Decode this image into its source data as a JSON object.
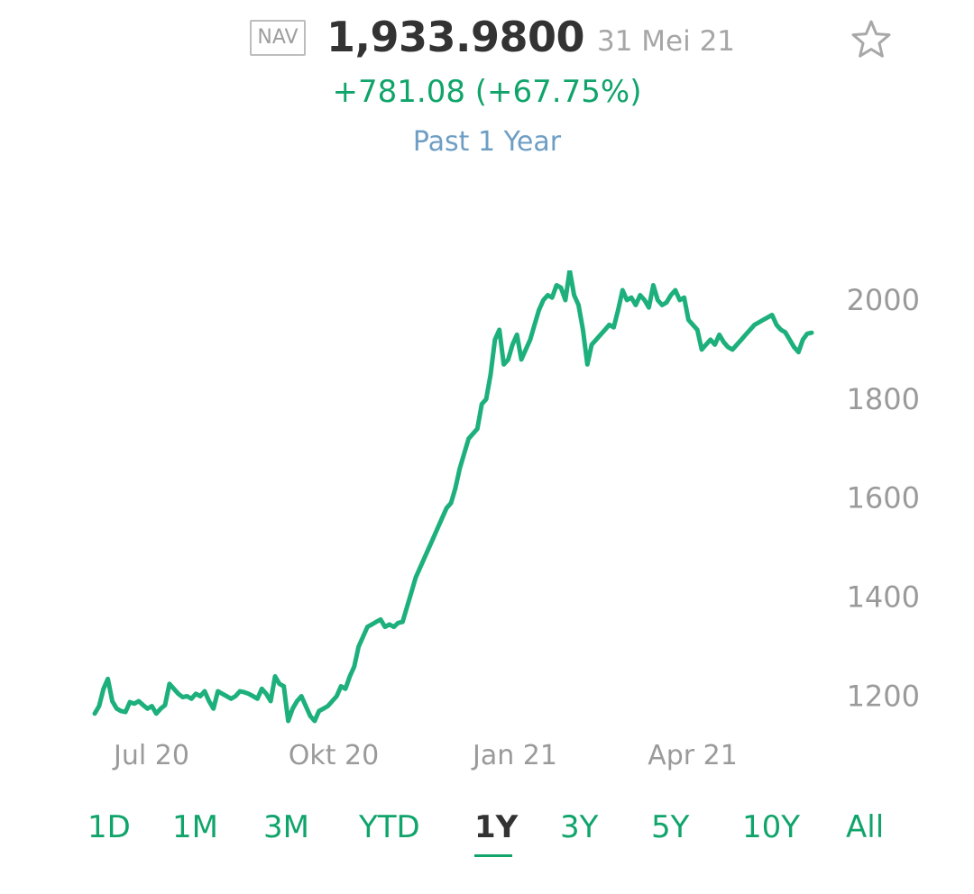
{
  "header": {
    "badge": "NAV",
    "price": "1,933.9800",
    "date": "31 Mei 21",
    "change": "+781.08 (+67.75%)",
    "period": "Past 1 Year"
  },
  "ranges": [
    "1D",
    "1M",
    "3M",
    "YTD",
    "1Y",
    "3Y",
    "5Y",
    "10Y",
    "All"
  ],
  "active_range": "1Y",
  "colors": {
    "line": "#1db07c",
    "positive": "#10a46b",
    "period": "#6e9ec4",
    "axis_text": "#9a9a9a"
  },
  "chart_data": {
    "type": "line",
    "y_ticks": [
      1200,
      1400,
      1600,
      1800,
      2000
    ],
    "x_ticks": [
      "Jul 20",
      "Okt 20",
      "Jan 21",
      "Apr 21"
    ],
    "ylim": [
      1150,
      2060
    ],
    "grid": false,
    "series": [
      {
        "values": [
          1165,
          1180,
          1215,
          1235,
          1190,
          1175,
          1170,
          1168,
          1188,
          1185,
          1190,
          1182,
          1175,
          1180,
          1165,
          1175,
          1182,
          1225,
          1215,
          1205,
          1198,
          1200,
          1195,
          1205,
          1200,
          1210,
          1190,
          1175,
          1210,
          1205,
          1200,
          1195,
          1200,
          1210,
          1208,
          1205,
          1200,
          1195,
          1215,
          1205,
          1190,
          1240,
          1225,
          1220,
          1150,
          1175,
          1190,
          1200,
          1180,
          1160,
          1150,
          1170,
          1175,
          1180,
          1190,
          1200,
          1220,
          1215,
          1240,
          1260,
          1300,
          1320,
          1340,
          1345,
          1350,
          1355,
          1340,
          1345,
          1340,
          1348,
          1350,
          1380,
          1410,
          1440,
          1460,
          1480,
          1500,
          1520,
          1540,
          1560,
          1580,
          1590,
          1620,
          1660,
          1690,
          1720,
          1730,
          1740,
          1790,
          1800,
          1850,
          1920,
          1940,
          1870,
          1880,
          1910,
          1930,
          1880,
          1900,
          1920,
          1950,
          1980,
          2000,
          2010,
          2005,
          2030,
          2025,
          2000,
          2060,
          2010,
          1990,
          1940,
          1870,
          1910,
          1920,
          1930,
          1940,
          1950,
          1945,
          1980,
          2020,
          2000,
          2005,
          1990,
          2010,
          2000,
          1985,
          2030,
          2000,
          1990,
          1995,
          2010,
          2020,
          2000,
          2005,
          1960,
          1950,
          1940,
          1900,
          1910,
          1920,
          1910,
          1930,
          1915,
          1905,
          1900,
          1910,
          1920,
          1930,
          1940,
          1950,
          1955,
          1960,
          1965,
          1970,
          1950,
          1940,
          1935,
          1920,
          1905,
          1895,
          1920,
          1932,
          1934
        ]
      }
    ]
  }
}
